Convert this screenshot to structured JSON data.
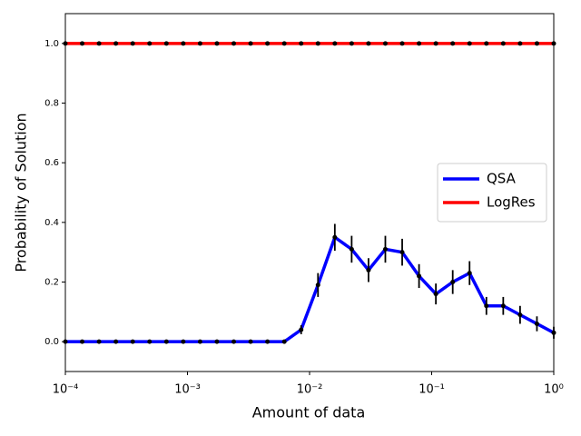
{
  "chart_data": {
    "type": "line",
    "xlabel": "Amount of data",
    "ylabel": "Probability of Solution",
    "xscale": "log",
    "xlim": [
      0.0001,
      1
    ],
    "ylim": [
      -0.1,
      1.1
    ],
    "xticks": [
      {
        "value": 0.0001,
        "label": "10⁻⁴"
      },
      {
        "value": 0.001,
        "label": "10⁻³"
      },
      {
        "value": 0.01,
        "label": "10⁻²"
      },
      {
        "value": 0.1,
        "label": "10⁻¹"
      },
      {
        "value": 1,
        "label": "10⁰"
      }
    ],
    "yticks": [
      {
        "value": 0,
        "label": "0.0"
      },
      {
        "value": 0.2,
        "label": "0.2"
      },
      {
        "value": 0.4,
        "label": "0.4"
      },
      {
        "value": 0.6,
        "label": "0.6"
      },
      {
        "value": 0.8,
        "label": "0.8"
      },
      {
        "value": 1,
        "label": "1.0"
      }
    ],
    "legend": "center right",
    "x": [
      0.0001,
      0.00013738,
      0.00018874,
      0.00025929,
      0.00035622,
      0.00048939,
      0.00067234,
      0.00092367,
      0.001269,
      0.0017433,
      0.002395,
      0.0032903,
      0.0045204,
      0.0062102,
      0.0085317,
      0.011721,
      0.016103,
      0.022122,
      0.030392,
      0.041753,
      0.057362,
      0.078805,
      0.10826,
      0.14874,
      0.20434,
      0.28072,
      0.38566,
      0.52983,
      0.7279,
      1
    ],
    "series": [
      {
        "name": "QSA",
        "color": "#0000ff",
        "values": [
          0,
          0,
          0,
          0,
          0,
          0,
          0,
          0,
          0,
          0,
          0,
          0,
          0,
          0,
          0.04,
          0.19,
          0.35,
          0.31,
          0.24,
          0.31,
          0.3,
          0.22,
          0.16,
          0.2,
          0.23,
          0.12,
          0.12,
          0.09,
          0.06,
          0.03
        ],
        "errors": [
          0,
          0,
          0,
          0,
          0,
          0,
          0,
          0,
          0,
          0,
          0,
          0,
          0,
          0,
          0.015,
          0.04,
          0.045,
          0.045,
          0.04,
          0.045,
          0.045,
          0.04,
          0.035,
          0.04,
          0.04,
          0.03,
          0.03,
          0.03,
          0.025,
          0.02
        ]
      },
      {
        "name": "LogRes",
        "color": "#ff0000",
        "values": [
          1,
          1,
          1,
          1,
          1,
          1,
          1,
          1,
          1,
          1,
          1,
          1,
          1,
          1,
          1,
          1,
          1,
          1,
          1,
          1,
          1,
          1,
          1,
          1,
          1,
          1,
          1,
          1,
          1,
          1
        ]
      }
    ]
  }
}
